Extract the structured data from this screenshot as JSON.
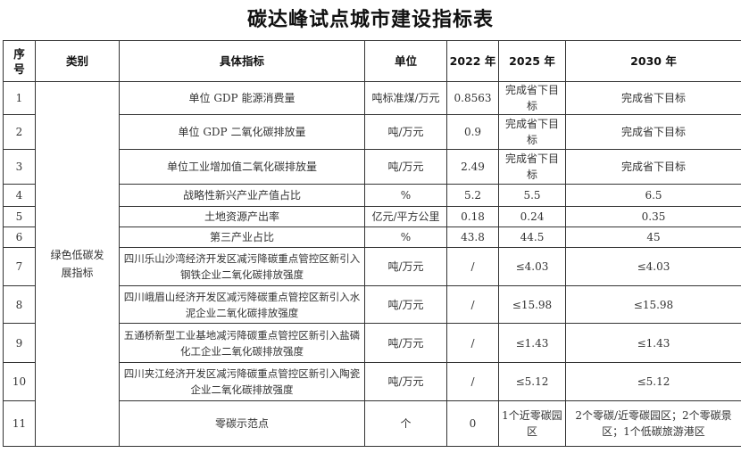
{
  "title": "碳达峰试点城市建设指标表",
  "headers": [
    "序号",
    "类别",
    "具体指标",
    "单位",
    "2022 年",
    "2025 年",
    "2030 年"
  ],
  "category": "绿色低碳发展指标",
  "rows": [
    {
      "no": "1",
      "indicator": "单位 GDP 能源消费量",
      "unit": "吨标准煤/万元",
      "y2022": "0.8563",
      "y2025": "完成省下目标",
      "y2030": "完成省下目标"
    },
    {
      "no": "2",
      "indicator": "单位 GDP 二氧化碳排放量",
      "unit": "吨/万元",
      "y2022": "0.9",
      "y2025": "完成省下目标",
      "y2030": "完成省下目标"
    },
    {
      "no": "3",
      "indicator": "单位工业增加值二氧化碳排放量",
      "unit": "吨/万元",
      "y2022": "2.49",
      "y2025": "完成省下目标",
      "y2030": "完成省下目标"
    },
    {
      "no": "4",
      "indicator": "战略性新兴产业产值占比",
      "unit": "%",
      "y2022": "5.2",
      "y2025": "5.5",
      "y2030": "6.5"
    },
    {
      "no": "5",
      "indicator": "土地资源产出率",
      "unit": "亿元/平方公里",
      "y2022": "0.18",
      "y2025": "0.24",
      "y2030": "0.35"
    },
    {
      "no": "6",
      "indicator": "第三产业占比",
      "unit": "%",
      "y2022": "43.8",
      "y2025": "44.5",
      "y2030": "45"
    },
    {
      "no": "7",
      "indicator": "四川乐山沙湾经济开发区减污降碳重点管控区新引入钢铁企业二氧化碳排放强度",
      "unit": "吨/万元",
      "y2022": "/",
      "y2025": "≤4.03",
      "y2030": "≤4.03"
    },
    {
      "no": "8",
      "indicator": "四川峨眉山经济开发区减污降碳重点管控区新引入水泥企业二氧化碳排放强度",
      "unit": "吨/万元",
      "y2022": "/",
      "y2025": "≤15.98",
      "y2030": "≤15.98"
    },
    {
      "no": "9",
      "indicator": "五通桥新型工业基地减污降碳重点管控区新引入盐磷化工企业二氧化碳排放强度",
      "unit": "吨/万元",
      "y2022": "/",
      "y2025": "≤1.43",
      "y2030": "≤1.43"
    },
    {
      "no": "10",
      "indicator": "四川夹江经济开发区减污降碳重点管控区新引入陶瓷企业二氧化碳排放强度",
      "unit": "吨/万元",
      "y2022": "/",
      "y2025": "≤5.12",
      "y2030": "≤5.12"
    },
    {
      "no": "11",
      "indicator": "零碳示范点",
      "unit": "个",
      "y2022": "0",
      "y2025": "1个近零碳园区",
      "y2030": "2个零碳/近零碳园区；2个零碳景区；1个低碳旅游港区"
    }
  ]
}
